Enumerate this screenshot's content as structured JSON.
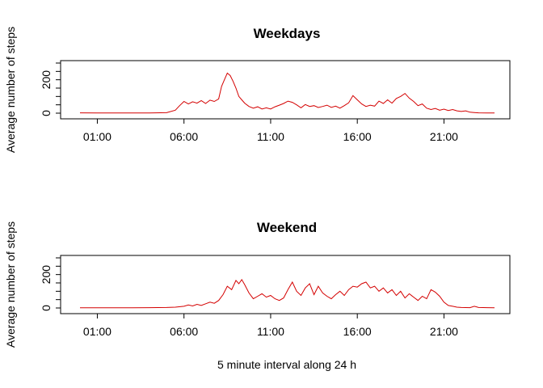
{
  "chart_data": [
    {
      "type": "line",
      "title": "Weekdays",
      "xlabel": "",
      "ylabel": "Average number of steps",
      "ylim": [
        0,
        300
      ],
      "xlim": [
        "00:00",
        "23:55"
      ],
      "x_ticks": [
        "01:00",
        "06:00",
        "11:00",
        "16:00",
        "21:00"
      ],
      "y_ticks": [
        "0",
        "200"
      ],
      "line_color": "#d40000",
      "series_points": [
        [
          "00:00",
          2
        ],
        [
          "01:00",
          1
        ],
        [
          "02:00",
          1
        ],
        [
          "03:00",
          1
        ],
        [
          "04:00",
          1
        ],
        [
          "05:00",
          3
        ],
        [
          "05:30",
          18
        ],
        [
          "05:45",
          45
        ],
        [
          "06:00",
          70
        ],
        [
          "06:15",
          55
        ],
        [
          "06:30",
          68
        ],
        [
          "06:45",
          60
        ],
        [
          "07:00",
          75
        ],
        [
          "07:15",
          58
        ],
        [
          "07:30",
          78
        ],
        [
          "07:45",
          70
        ],
        [
          "08:00",
          85
        ],
        [
          "08:10",
          160
        ],
        [
          "08:20",
          200
        ],
        [
          "08:30",
          240
        ],
        [
          "08:40",
          225
        ],
        [
          "08:50",
          190
        ],
        [
          "09:00",
          150
        ],
        [
          "09:10",
          100
        ],
        [
          "09:20",
          80
        ],
        [
          "09:30",
          60
        ],
        [
          "09:45",
          40
        ],
        [
          "10:00",
          30
        ],
        [
          "10:15",
          38
        ],
        [
          "10:30",
          25
        ],
        [
          "10:45",
          32
        ],
        [
          "11:00",
          25
        ],
        [
          "11:15",
          38
        ],
        [
          "11:30",
          48
        ],
        [
          "11:45",
          58
        ],
        [
          "12:00",
          72
        ],
        [
          "12:15",
          65
        ],
        [
          "12:30",
          50
        ],
        [
          "12:45",
          32
        ],
        [
          "13:00",
          52
        ],
        [
          "13:15",
          40
        ],
        [
          "13:30",
          45
        ],
        [
          "13:45",
          34
        ],
        [
          "14:00",
          40
        ],
        [
          "14:15",
          48
        ],
        [
          "14:30",
          35
        ],
        [
          "14:45",
          42
        ],
        [
          "15:00",
          30
        ],
        [
          "15:15",
          45
        ],
        [
          "15:30",
          62
        ],
        [
          "15:45",
          105
        ],
        [
          "16:00",
          80
        ],
        [
          "16:15",
          55
        ],
        [
          "16:30",
          40
        ],
        [
          "16:45",
          48
        ],
        [
          "17:00",
          42
        ],
        [
          "17:15",
          72
        ],
        [
          "17:30",
          58
        ],
        [
          "17:45",
          80
        ],
        [
          "18:00",
          60
        ],
        [
          "18:15",
          88
        ],
        [
          "18:30",
          100
        ],
        [
          "18:45",
          118
        ],
        [
          "19:00",
          90
        ],
        [
          "19:15",
          70
        ],
        [
          "19:30",
          45
        ],
        [
          "19:45",
          55
        ],
        [
          "20:00",
          30
        ],
        [
          "20:15",
          22
        ],
        [
          "20:30",
          28
        ],
        [
          "20:45",
          18
        ],
        [
          "21:00",
          24
        ],
        [
          "21:15",
          16
        ],
        [
          "21:30",
          22
        ],
        [
          "21:45",
          14
        ],
        [
          "22:00",
          10
        ],
        [
          "22:15",
          14
        ],
        [
          "22:30",
          6
        ],
        [
          "22:45",
          4
        ],
        [
          "23:00",
          2
        ],
        [
          "23:30",
          1
        ],
        [
          "23:55",
          1
        ]
      ]
    },
    {
      "type": "line",
      "title": "Weekend",
      "xlabel": "5 minute interval along 24 h",
      "ylabel": "Average number of steps",
      "ylim": [
        0,
        300
      ],
      "xlim": [
        "00:00",
        "23:55"
      ],
      "x_ticks": [
        "01:00",
        "06:00",
        "11:00",
        "16:00",
        "21:00"
      ],
      "y_ticks": [
        "0",
        "200"
      ],
      "line_color": "#d40000",
      "series_points": [
        [
          "00:00",
          1
        ],
        [
          "01:00",
          1
        ],
        [
          "02:00",
          1
        ],
        [
          "03:00",
          1
        ],
        [
          "04:00",
          2
        ],
        [
          "05:00",
          3
        ],
        [
          "05:30",
          5
        ],
        [
          "06:00",
          10
        ],
        [
          "06:15",
          18
        ],
        [
          "06:30",
          12
        ],
        [
          "06:45",
          22
        ],
        [
          "07:00",
          15
        ],
        [
          "07:15",
          25
        ],
        [
          "07:30",
          35
        ],
        [
          "07:45",
          28
        ],
        [
          "08:00",
          45
        ],
        [
          "08:15",
          80
        ],
        [
          "08:30",
          130
        ],
        [
          "08:45",
          110
        ],
        [
          "09:00",
          165
        ],
        [
          "09:10",
          145
        ],
        [
          "09:20",
          170
        ],
        [
          "09:30",
          140
        ],
        [
          "09:45",
          90
        ],
        [
          "10:00",
          55
        ],
        [
          "10:15",
          70
        ],
        [
          "10:30",
          85
        ],
        [
          "10:45",
          65
        ],
        [
          "11:00",
          75
        ],
        [
          "11:15",
          55
        ],
        [
          "11:30",
          45
        ],
        [
          "11:45",
          60
        ],
        [
          "12:00",
          110
        ],
        [
          "12:15",
          155
        ],
        [
          "12:30",
          100
        ],
        [
          "12:45",
          75
        ],
        [
          "13:00",
          120
        ],
        [
          "13:15",
          145
        ],
        [
          "13:30",
          80
        ],
        [
          "13:45",
          130
        ],
        [
          "14:00",
          90
        ],
        [
          "14:15",
          70
        ],
        [
          "14:30",
          55
        ],
        [
          "14:45",
          80
        ],
        [
          "15:00",
          100
        ],
        [
          "15:15",
          75
        ],
        [
          "15:30",
          110
        ],
        [
          "15:45",
          130
        ],
        [
          "16:00",
          125
        ],
        [
          "16:15",
          145
        ],
        [
          "16:30",
          155
        ],
        [
          "16:45",
          120
        ],
        [
          "17:00",
          130
        ],
        [
          "17:15",
          100
        ],
        [
          "17:30",
          120
        ],
        [
          "17:45",
          90
        ],
        [
          "18:00",
          110
        ],
        [
          "18:15",
          75
        ],
        [
          "18:30",
          100
        ],
        [
          "18:45",
          60
        ],
        [
          "19:00",
          85
        ],
        [
          "19:15",
          65
        ],
        [
          "19:30",
          45
        ],
        [
          "19:45",
          70
        ],
        [
          "20:00",
          55
        ],
        [
          "20:15",
          110
        ],
        [
          "20:30",
          95
        ],
        [
          "20:45",
          70
        ],
        [
          "21:00",
          35
        ],
        [
          "21:15",
          15
        ],
        [
          "21:30",
          10
        ],
        [
          "21:45",
          5
        ],
        [
          "22:00",
          3
        ],
        [
          "22:30",
          2
        ],
        [
          "22:45",
          10
        ],
        [
          "23:00",
          3
        ],
        [
          "23:30",
          2
        ],
        [
          "23:55",
          1
        ]
      ]
    }
  ]
}
